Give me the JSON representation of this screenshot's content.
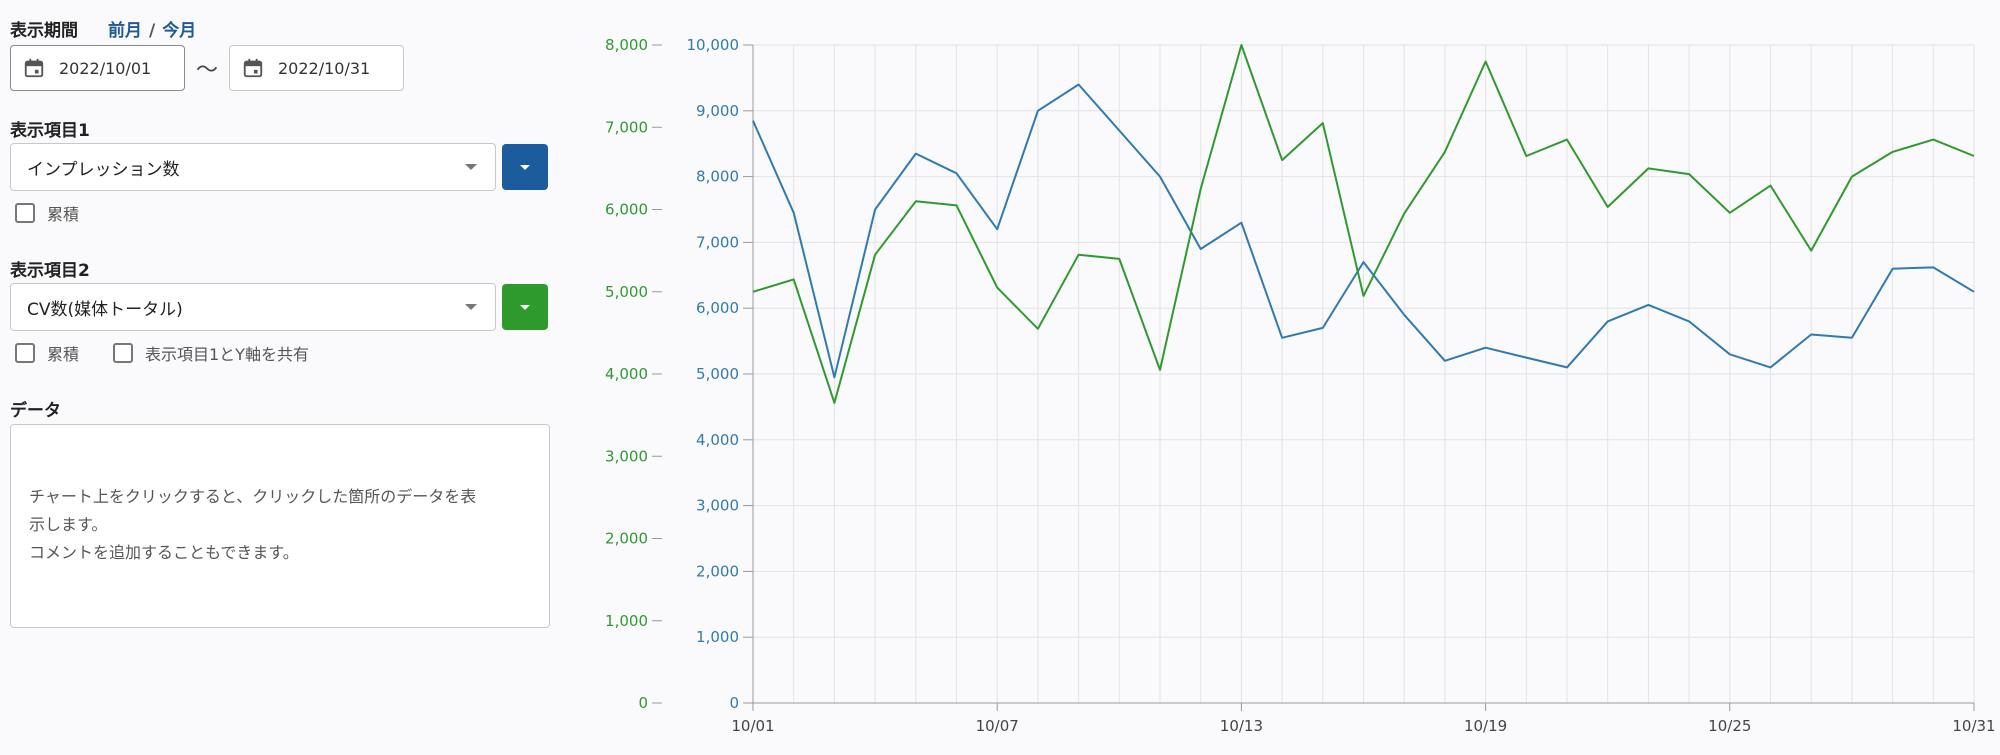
{
  "period": {
    "label": "表示期間",
    "prev_month": "前月",
    "separator": "/",
    "this_month": "今月",
    "start_date": "2022/10/01",
    "range_sep": "〜",
    "end_date": "2022/10/31"
  },
  "item1": {
    "label": "表示項目1",
    "selected": "インプレッション数",
    "color": "#1c5b9c",
    "cumulative_label": "累積"
  },
  "item2": {
    "label": "表示項目2",
    "selected": "CV数(媒体トータル)",
    "color": "#2e9a2e",
    "cumulative_label": "累積",
    "share_axis_label": "表示項目1とY軸を共有"
  },
  "data_panel": {
    "label": "データ",
    "line1": "チャート上をクリックすると、クリックした箇所のデータを表",
    "line2": "示します。",
    "line3": "コメントを追加することもできます。"
  },
  "chart_data": {
    "type": "line",
    "x": [
      "10/01",
      "10/02",
      "10/03",
      "10/04",
      "10/05",
      "10/06",
      "10/07",
      "10/08",
      "10/09",
      "10/10",
      "10/11",
      "10/12",
      "10/13",
      "10/14",
      "10/15",
      "10/16",
      "10/17",
      "10/18",
      "10/19",
      "10/20",
      "10/21",
      "10/22",
      "10/23",
      "10/24",
      "10/25",
      "10/26",
      "10/27",
      "10/28",
      "10/29",
      "10/30",
      "10/31"
    ],
    "x_tick_labels": [
      "10/01",
      "10/07",
      "10/13",
      "10/19",
      "10/25",
      "10/31"
    ],
    "y_left": {
      "ticks": [
        "0",
        "1,000",
        "2,000",
        "3,000",
        "4,000",
        "5,000",
        "6,000",
        "7,000",
        "8,000"
      ],
      "ylim": [
        0,
        8000
      ],
      "color": "#2e9a2e"
    },
    "y_right": {
      "ticks": [
        "0",
        "1,000",
        "2,000",
        "3,000",
        "4,000",
        "5,000",
        "6,000",
        "7,000",
        "8,000",
        "9,000",
        "10,000"
      ],
      "ylim": [
        0,
        10000
      ],
      "color": "#2f7ab0"
    },
    "grid": true,
    "series": [
      {
        "axis": "right",
        "color": "#2f7ab0",
        "values": [
          8850,
          7450,
          4950,
          7500,
          8350,
          8050,
          7200,
          9000,
          9400,
          8700,
          8000,
          6900,
          7300,
          5550,
          5700,
          6700,
          5900,
          5200,
          5400,
          5250,
          5100,
          5800,
          6050,
          5800,
          5300,
          5100,
          5600,
          5550,
          6600,
          6620,
          6250
        ]
      },
      {
        "axis": "left",
        "color": "#2e9a2e",
        "values": [
          5000,
          5150,
          3650,
          5450,
          6100,
          6050,
          5050,
          4550,
          5450,
          5400,
          4050,
          6250,
          8000,
          6600,
          7050,
          4950,
          5950,
          6700,
          7800,
          6650,
          6850,
          6030,
          6500,
          6430,
          5960,
          6290,
          5500,
          6400,
          6700,
          6850,
          6650
        ]
      }
    ]
  }
}
